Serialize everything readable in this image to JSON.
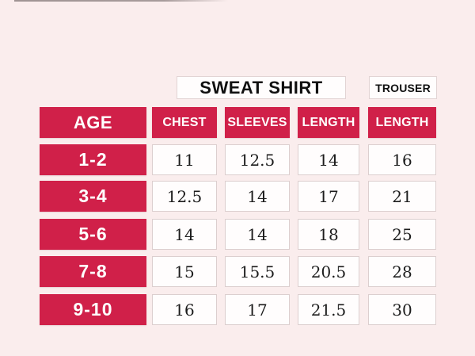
{
  "groups": {
    "sweatshirt_label": "SWEAT SHIRT",
    "trouser_label": "TROUSER"
  },
  "table": {
    "headers": [
      "AGE",
      "CHEST",
      "SLEEVES",
      "LENGTH",
      "LENGTH"
    ],
    "rows": [
      {
        "age": "1-2",
        "values": [
          "11",
          "12.5",
          "14",
          "16"
        ]
      },
      {
        "age": "3-4",
        "values": [
          "12.5",
          "14",
          "17",
          "21"
        ]
      },
      {
        "age": "5-6",
        "values": [
          "14",
          "14",
          "18",
          "25"
        ]
      },
      {
        "age": "7-8",
        "values": [
          "15",
          "15.5",
          "20.5",
          "28"
        ]
      },
      {
        "age": "9-10",
        "values": [
          "16",
          "17",
          "21.5",
          "30"
        ]
      }
    ]
  },
  "colors": {
    "background": "#faeded",
    "accent_red": "#d02049",
    "cell_fill": "#fffdfd",
    "cell_border": "#dccfcf",
    "value_text": "#1c1c1c",
    "header_text": "#ffffff"
  },
  "chart_data": {
    "type": "table",
    "column_groups": [
      {
        "label": "SWEAT SHIRT",
        "columns": [
          "CHEST",
          "SLEEVES",
          "LENGTH"
        ]
      },
      {
        "label": "TROUSER",
        "columns": [
          "LENGTH"
        ]
      }
    ],
    "columns": [
      "AGE",
      "CHEST",
      "SLEEVES",
      "LENGTH",
      "LENGTH"
    ],
    "rows": [
      [
        "1-2",
        11,
        12.5,
        14,
        16
      ],
      [
        "3-4",
        12.5,
        14,
        17,
        21
      ],
      [
        "5-6",
        14,
        14,
        18,
        25
      ],
      [
        "7-8",
        15,
        15.5,
        20.5,
        28
      ],
      [
        "9-10",
        16,
        17,
        21.5,
        30
      ]
    ]
  }
}
